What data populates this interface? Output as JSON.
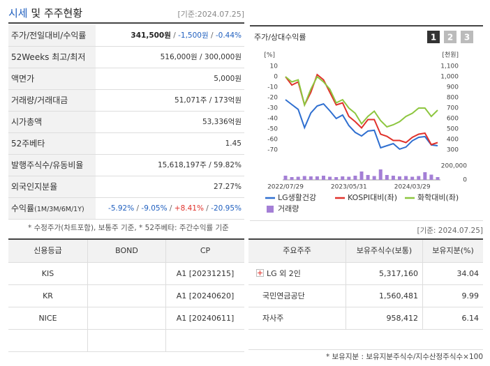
{
  "header": {
    "title_parts": [
      {
        "text": "시세",
        "color": "#1f5fbf"
      },
      {
        "text": " 및 주주현황",
        "color": "#222222"
      }
    ],
    "date": "[기준:2024.07.25]"
  },
  "summary": {
    "rows": [
      {
        "label": "주가/전일대비/수익률",
        "parts": [
          {
            "text": "341,500원",
            "color": "#222222",
            "bold": true
          },
          {
            "text": " / ",
            "color": "#666666"
          },
          {
            "text": "-1,500원",
            "color": "#1f5fbf"
          },
          {
            "text": " / ",
            "color": "#666666"
          },
          {
            "text": "-0.44%",
            "color": "#1f5fbf"
          }
        ]
      },
      {
        "label": "52Weeks 최고/최저",
        "value": "516,000원 / 300,000원"
      },
      {
        "label": "액면가",
        "value": "5,000원"
      },
      {
        "label": "거래량/거래대금",
        "value": "51,071주 / 173억원"
      },
      {
        "label": "시가총액",
        "value": "53,336억원"
      },
      {
        "label": "52주베타",
        "value": "1.45"
      },
      {
        "label": "발행주식수/유동비율",
        "value": "15,618,197주 / 59.82%"
      },
      {
        "label": "외국인지분율",
        "value": "27.27%"
      },
      {
        "label": "수익률",
        "label_note": "(1M/3M/6M/1Y)",
        "parts": [
          {
            "text": "-5.92%",
            "color": "#1f5fbf"
          },
          {
            "text": " / ",
            "color": "#666666"
          },
          {
            "text": "-9.05%",
            "color": "#1f5fbf"
          },
          {
            "text": " / ",
            "color": "#666666"
          },
          {
            "text": "+8.41%",
            "color": "#e0322b"
          },
          {
            "text": " / ",
            "color": "#666666"
          },
          {
            "text": "-20.95%",
            "color": "#1f5fbf"
          }
        ]
      }
    ],
    "note": "* 수정주가(차트포함), 보통주 기준, * 52주베타: 주간수익률 기준"
  },
  "chart_tabs": [
    "1",
    "2",
    "3"
  ],
  "chart_data": {
    "type": "line",
    "title": "주가/상대수익률",
    "y_unit": "[%]",
    "y2_unit": "[천원]",
    "categories": [
      "2022/07/29",
      null,
      null,
      null,
      null,
      null,
      null,
      null,
      null,
      null,
      "2023/05/31",
      null,
      null,
      null,
      null,
      null,
      null,
      null,
      null,
      null,
      "2024/03/29",
      null,
      null,
      null,
      null
    ],
    "ylim": [
      -70,
      10
    ],
    "yticks": [
      10,
      0,
      -10,
      -20,
      -30,
      -40,
      -50,
      -60,
      -70
    ],
    "y2lim": [
      300,
      1100
    ],
    "y2ticks": [
      {
        "value": 1100,
        "label": "1,100"
      },
      {
        "value": 1000,
        "label": "1,000"
      },
      900,
      800,
      700,
      600,
      500,
      400,
      300
    ],
    "vlim": [
      0,
      200000
    ],
    "vticks": [
      {
        "value": 200000,
        "label": "200,000"
      },
      0
    ],
    "series": [
      {
        "name": "LG생활건강",
        "color": "#2f6fd0",
        "axis": "y2",
        "values": [
          780,
          733,
          687,
          513,
          653,
          720,
          740,
          673,
          600,
          633,
          533,
          467,
          433,
          480,
          487,
          320,
          340,
          360,
          307,
          327,
          387,
          420,
          427,
          347,
          340
        ]
      },
      {
        "name": "KOSPI대비(좌)",
        "color": "#e0322b",
        "values": [
          0,
          -8,
          -5,
          -27,
          -15,
          2,
          -3,
          -15,
          -27,
          -25,
          -38,
          -43,
          -49,
          -41,
          -41,
          -55,
          -57,
          -61,
          -61,
          -63,
          -58,
          -55,
          -54,
          -65,
          -63
        ]
      },
      {
        "name": "화학대비(좌)",
        "color": "#8dc63f",
        "values": [
          0,
          -5,
          -3,
          -27,
          -12,
          0,
          -5,
          -12,
          -25,
          -22,
          -30,
          -35,
          -45,
          -38,
          -33,
          -42,
          -48,
          -46,
          -43,
          -38,
          -35,
          -30,
          -30,
          -38,
          -32
        ]
      },
      {
        "name": "거래량",
        "color": "#a47fd6",
        "axis": "v",
        "type": "bar",
        "values": [
          60000,
          40000,
          45000,
          55000,
          50000,
          50000,
          60000,
          45000,
          40000,
          50000,
          45000,
          60000,
          120000,
          70000,
          55000,
          150000,
          70000,
          60000,
          50000,
          55000,
          45000,
          55000,
          110000,
          75000,
          40000
        ]
      }
    ]
  },
  "date2": "[기준: 2024.07.25]",
  "credit": {
    "columns": [
      "신용등급",
      "BOND",
      "CP"
    ],
    "rows": [
      [
        "KIS",
        null,
        "A1  [20231215]"
      ],
      [
        "KR",
        null,
        "A1  [20240620]"
      ],
      [
        "NICE",
        null,
        "A1  [20240611]"
      ]
    ]
  },
  "holders": {
    "columns": [
      "주요주주",
      "보유주식수(보통)",
      "보유지분(%)"
    ],
    "rows": [
      [
        "LG 외 2인",
        "5,317,160",
        "34.04"
      ],
      [
        "국민연금공단",
        "1,560,481",
        "9.99"
      ],
      [
        "자사주",
        "958,412",
        "6.14"
      ]
    ],
    "note": "* 보유지분 : 보유지분주식수/지수산정주식수×100"
  }
}
